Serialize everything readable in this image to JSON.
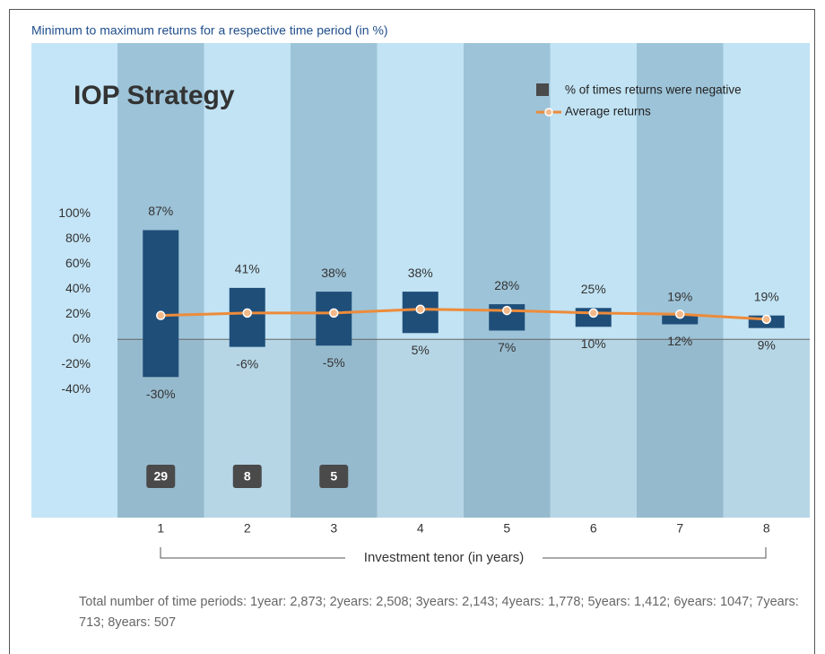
{
  "chart_data": {
    "type": "range_bar",
    "subtitle": "Minimum to maximum returns for a respective time period (in %)",
    "title": "IOP Strategy",
    "xlabel": "Investment tenor (in years)",
    "categories": [
      "1",
      "2",
      "3",
      "4",
      "5",
      "6",
      "7",
      "8"
    ],
    "range": {
      "color": "#1f4e79",
      "high": {
        "values": [
          87,
          41,
          38,
          38,
          28,
          25,
          19,
          19
        ],
        "value_labels": [
          "87%",
          "41%",
          "38%",
          "38%",
          "28%",
          "25%",
          "19%",
          "19%"
        ]
      },
      "low": {
        "values": [
          -30,
          -6,
          -5,
          5,
          7,
          10,
          12,
          9
        ],
        "value_labels": [
          "-30%",
          "-6%",
          "-5%",
          "5%",
          "7%",
          "10%",
          "12%",
          "9%"
        ]
      }
    },
    "series": [
      {
        "name": "% of times returns were negative",
        "color": "#4a4a4a",
        "values": [
          29,
          8,
          5,
          null,
          null,
          null,
          null,
          null
        ]
      },
      {
        "name": "Average returns",
        "color": "#ed8b3a",
        "values": [
          19,
          21,
          21,
          24,
          23,
          21,
          20,
          16
        ]
      }
    ],
    "ylim": [
      -142,
      236
    ],
    "yticks": [
      {
        "value": 100,
        "label": "100%"
      },
      {
        "value": 80,
        "label": "80%"
      },
      {
        "value": 60,
        "label": "60%"
      },
      {
        "value": 40,
        "label": "40%"
      },
      {
        "value": 20,
        "label": "20%"
      },
      {
        "value": 0,
        "label": "0%"
      },
      {
        "value": -20,
        "label": "-20%"
      },
      {
        "value": -40,
        "label": "-40%"
      }
    ],
    "footnote": "Total number of time periods: 1year: 2,873; 2years: 2,508; 3years: 2,143; 4years: 1,778; 5years: 1,412; 6years: 1047; 7years: 713; 8years: 507"
  }
}
